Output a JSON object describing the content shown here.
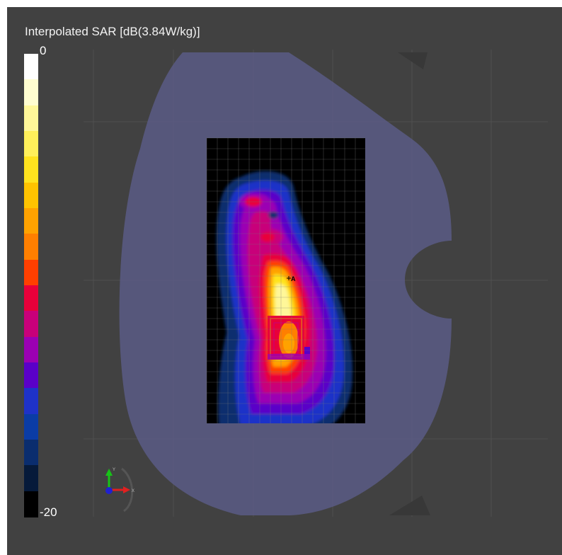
{
  "title": "Interpolated SAR [dB(3.84W/kg)]",
  "colorbar": {
    "max_label": "0",
    "min_label": "-20",
    "colors": [
      "#ffffff",
      "#fffdd0",
      "#fff799",
      "#fff05a",
      "#ffe31e",
      "#ffc300",
      "#ffa200",
      "#ff7f00",
      "#ff3f00",
      "#e8003a",
      "#c8007a",
      "#9b00b3",
      "#5a00c8",
      "#1e32c8",
      "#0a3ca5",
      "#0a2d6e",
      "#061a3a",
      "#000000"
    ]
  },
  "chart_data": {
    "type": "heatmap",
    "title": "Interpolated SAR [dB(3.84W/kg)]",
    "colorbar_range_db": [
      -20,
      0
    ],
    "reference_W_per_kg": 3.84,
    "peak_db": 0,
    "hotspots": [
      {
        "region": "lower-center (antenna)",
        "level_db": -1
      },
      {
        "region": "middle-center",
        "level_db": -4
      },
      {
        "region": "upper-left",
        "level_db": -9
      }
    ],
    "grid": true,
    "marker_label": "A"
  },
  "icons": {
    "axis_triad": "xyz-axis-icon"
  }
}
